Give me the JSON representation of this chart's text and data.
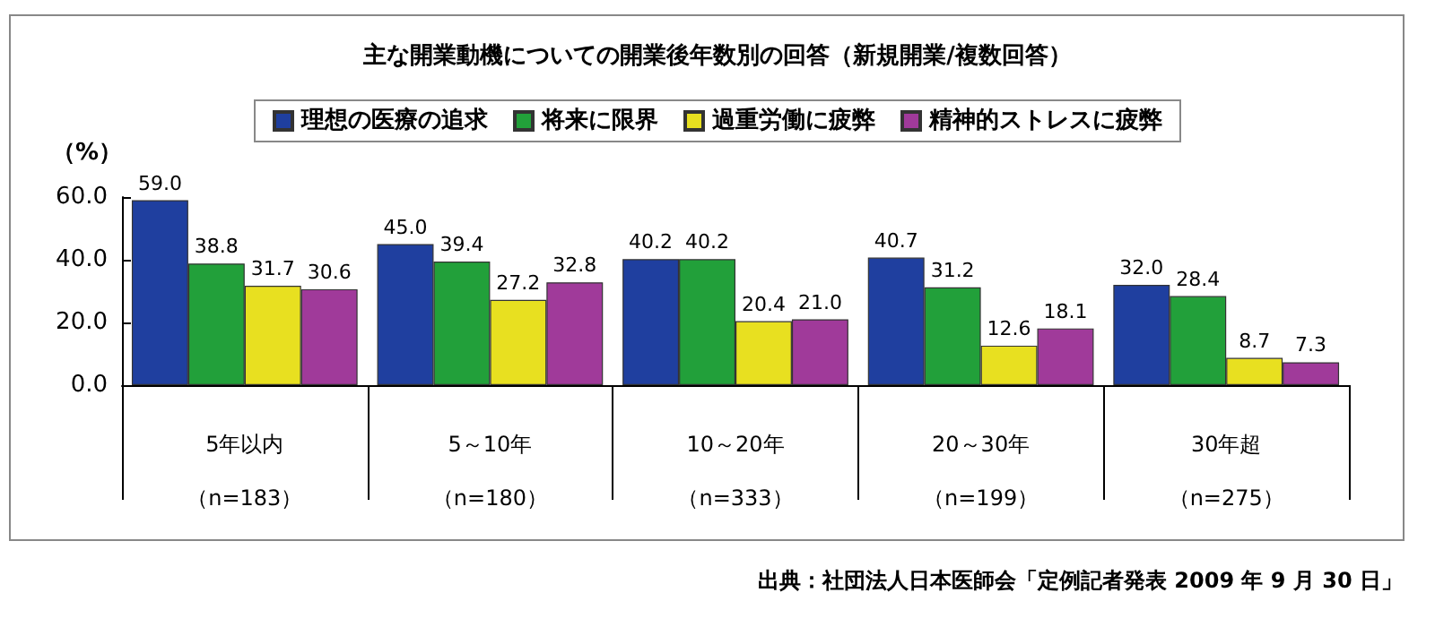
{
  "chart_data": {
    "type": "bar",
    "title": "主な開業動機についての開業後年数別の回答（新規開業/複数回答）",
    "ylabel": "（%）",
    "categories": [
      "5年以内（n=183）",
      "5～10年（n=180）",
      "10～20年（n=333）",
      "20～30年（n=199）",
      "30年超（n=275）"
    ],
    "series": [
      {
        "name": "理想の医療の追求",
        "color": "#1f3f9f",
        "values": [
          59.0,
          45.0,
          40.2,
          40.7,
          32.0
        ],
        "value_labels": [
          "59.0",
          "45.0",
          "40.2",
          "40.7",
          "32.0"
        ]
      },
      {
        "name": "将来に限界",
        "color": "#22a03a",
        "values": [
          38.8,
          39.4,
          40.2,
          31.2,
          28.4
        ],
        "value_labels": [
          "38.8",
          "39.4",
          "40.2",
          "31.2",
          "28.4"
        ]
      },
      {
        "name": "過重労働に疲弊",
        "color": "#e8e020",
        "values": [
          31.7,
          27.2,
          20.4,
          12.6,
          8.7
        ],
        "value_labels": [
          "31.7",
          "27.2",
          "20.4",
          "12.6",
          "8.7"
        ]
      },
      {
        "name": "精神的ストレスに疲弊",
        "color": "#a03a9a",
        "values": [
          30.6,
          32.8,
          21.0,
          18.1,
          7.3
        ],
        "value_labels": [
          "30.6",
          "32.8",
          "21.0",
          "18.1",
          "7.3"
        ]
      }
    ],
    "ylim": [
      0,
      60
    ],
    "yticks": [
      {
        "value": 0,
        "label": "0.0"
      },
      {
        "value": 20,
        "label": "20.0"
      },
      {
        "value": 40,
        "label": "40.0"
      },
      {
        "value": 60,
        "label": "60.0"
      }
    ],
    "grid": false,
    "legend": "top",
    "annotations": [
      "出典：社団法人日本医師会「定例記者発表 2009 年 9 月 30 日」"
    ]
  }
}
